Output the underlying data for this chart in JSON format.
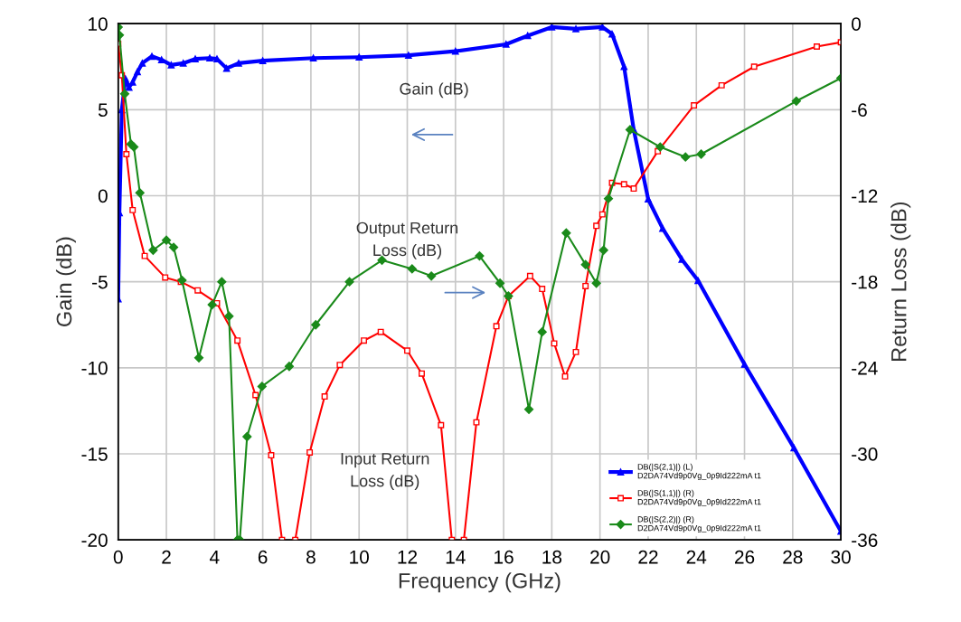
{
  "chart_data": {
    "type": "line",
    "xlabel": "Frequency (GHz)",
    "ylabel": "Gain (dB)",
    "y2label": "Return Loss (dB)",
    "xlim": [
      0,
      30
    ],
    "xticks": [
      0,
      2,
      4,
      6,
      8,
      10,
      12,
      14,
      16,
      18,
      20,
      22,
      24,
      26,
      28,
      30
    ],
    "ylim": [
      -20,
      10
    ],
    "yticks": [
      -20,
      -15,
      -10,
      -5,
      0,
      5,
      10
    ],
    "y2lim": [
      -36,
      0
    ],
    "y2ticks": [
      -36,
      -30,
      -24,
      -18,
      -12,
      -6,
      0
    ],
    "grid": true,
    "legend": "bottom right",
    "line_style": "solid",
    "series": [
      {
        "name": "DB(|S(2,1)|) (L)\nD2DA74Vd9p0Vg_0p9Id222mA t1",
        "color": "#0000ff",
        "marker": "triangle",
        "axis": "y",
        "x": [
          0,
          0.05,
          0.15,
          0.3,
          0.45,
          0.6,
          0.8,
          1.0,
          1.4,
          1.8,
          2.2,
          2.7,
          3.2,
          3.8,
          4.1,
          4.5,
          5.0,
          6.0,
          8.1,
          10,
          12.05,
          14,
          16.1,
          17,
          18,
          19,
          20.1,
          20.5,
          21,
          21.4,
          22.0,
          22.6,
          23.4,
          24.07,
          26,
          28.05,
          30
        ],
        "values": [
          -6,
          -1,
          5,
          6.8,
          6.3,
          6.6,
          7.2,
          7.7,
          8.1,
          7.9,
          7.6,
          7.7,
          7.95,
          8.0,
          7.95,
          7.4,
          7.7,
          7.85,
          8.0,
          8.05,
          8.16,
          8.4,
          8.8,
          9.3,
          9.8,
          9.7,
          9.8,
          9.4,
          7.5,
          3.85,
          -0.2,
          -1.9,
          -3.7,
          -4.93,
          -9.8,
          -14.65,
          -19.5
        ]
      },
      {
        "name": "DB(|S(1,1)|) (R)\nD2DA74Vd9p0Vg_0p9Id222mA t1",
        "color": "#ff0000",
        "marker": "square",
        "axis": "y2",
        "x": [
          0,
          0.15,
          0.34,
          0.6,
          1.1,
          1.95,
          2.6,
          3.3,
          4.1,
          4.95,
          5.7,
          6.35,
          6.8,
          7.0,
          7.35,
          7.95,
          8.57,
          9.2,
          10.2,
          10.9,
          12.0,
          12.6,
          13.4,
          13.85,
          14.1,
          14.35,
          14.87,
          15.7,
          16.2,
          17.1,
          17.6,
          18.1,
          18.55,
          19.0,
          19.4,
          19.85,
          20.1,
          20.5,
          21.0,
          21.4,
          22.4,
          23.9,
          25.05,
          26.4,
          29.0,
          30
        ],
        "values": [
          -1.4,
          -3.6,
          -9.1,
          -13.0,
          -16.2,
          -17.7,
          -18.0,
          -18.6,
          -19.5,
          -22.1,
          -25.9,
          -30.1,
          -36,
          null,
          -36,
          -29.9,
          -26.0,
          -23.8,
          -22.1,
          -21.5,
          -22.8,
          -24.4,
          -28.0,
          -36,
          null,
          -36,
          -27.8,
          -21.1,
          -19.0,
          -17.6,
          -18.5,
          -22.3,
          -24.6,
          -22.9,
          -18.3,
          -14.1,
          -13.3,
          -11.1,
          -11.2,
          -11.5,
          -8.9,
          -5.7,
          -4.3,
          -3.0,
          -1.6,
          -1.3
        ]
      },
      {
        "name": "DB(|S(2,2)|) (R)\nD2DA74Vd9p0Vg_0p9Id222mA t1",
        "color": "#1a8a1a",
        "marker": "diamond",
        "axis": "y2",
        "x": [
          0,
          0.05,
          0.27,
          0.53,
          0.65,
          0.9,
          1.45,
          2.0,
          2.3,
          2.65,
          3.35,
          3.9,
          4.3,
          4.6,
          4.95,
          5.0,
          5.05,
          5.35,
          5.97,
          7.1,
          8.2,
          9.6,
          10.95,
          12.2,
          13.0,
          15.0,
          15.85,
          16.2,
          17.05,
          17.6,
          18.6,
          19.4,
          19.85,
          20.15,
          20.35,
          21.25,
          22.5,
          23.55,
          24.2,
          28.15,
          30
        ],
        "values": [
          -0.25,
          -0.8,
          -4.9,
          -8.4,
          -8.6,
          -11.8,
          -15.8,
          -15.1,
          -15.6,
          -17.9,
          -23.3,
          -19.6,
          -18.0,
          -20.4,
          -36,
          null,
          -36,
          -28.8,
          -25.3,
          -23.9,
          -21.0,
          -18.0,
          -16.5,
          -17.1,
          -17.6,
          -16.2,
          -18.1,
          -19.0,
          -26.9,
          -21.5,
          -14.6,
          -16.8,
          -18.1,
          -15.8,
          -12.2,
          -7.4,
          -8.6,
          -9.3,
          -9.1,
          -5.4,
          -3.8
        ]
      }
    ],
    "annotations": [
      "Gain (dB)",
      "Output Return\nLoss (dB)",
      "Input Return\nLoss (dB)"
    ]
  }
}
